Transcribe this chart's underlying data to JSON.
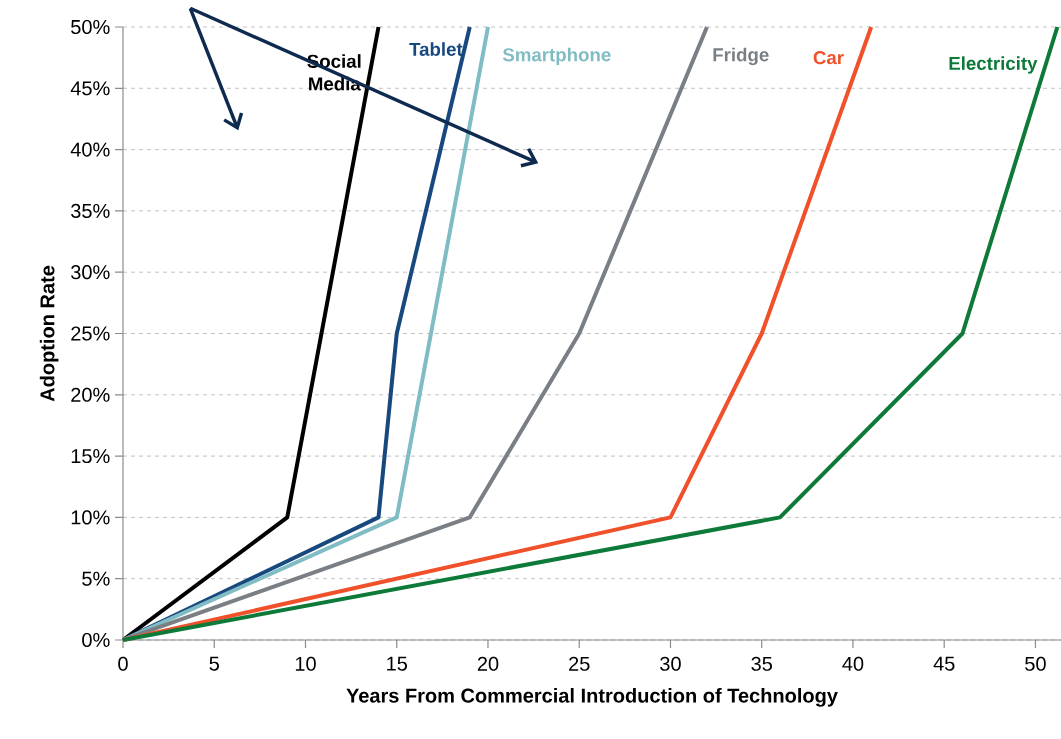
{
  "chart_data": {
    "type": "line",
    "xlabel": "Years From Commercial Introduction of Technology",
    "ylabel": "Adoption Rate",
    "xlim": [
      0,
      51.4
    ],
    "ylim": [
      0,
      50
    ],
    "xticks": [
      0,
      5,
      10,
      15,
      20,
      25,
      30,
      35,
      40,
      45,
      50
    ],
    "yticks": [
      {
        "value": 0,
        "label": "0%"
      },
      {
        "value": 5,
        "label": "5%"
      },
      {
        "value": 10,
        "label": "10%"
      },
      {
        "value": 15,
        "label": "15%"
      },
      {
        "value": 20,
        "label": "20%"
      },
      {
        "value": 25,
        "label": "25%"
      },
      {
        "value": 30,
        "label": "30%"
      },
      {
        "value": 35,
        "label": "35%"
      },
      {
        "value": 40,
        "label": "40%"
      },
      {
        "value": 45,
        "label": "45%"
      },
      {
        "value": 50,
        "label": "50%"
      }
    ],
    "grid": "y",
    "legend": false,
    "series": [
      {
        "name": "Social Media",
        "color": "#000000",
        "x": [
          0,
          9,
          14
        ],
        "values": [
          0,
          10,
          50
        ]
      },
      {
        "name": "Tablet",
        "color": "#17497f",
        "x": [
          0,
          14,
          15,
          19
        ],
        "values": [
          0,
          10,
          25,
          50
        ]
      },
      {
        "name": "Smartphone",
        "color": "#7fbcc4",
        "x": [
          0,
          15,
          20
        ],
        "values": [
          0,
          10,
          50
        ]
      },
      {
        "name": "Fridge",
        "color": "#7a7f85",
        "x": [
          0,
          19,
          25,
          32
        ],
        "values": [
          0,
          10,
          25,
          50
        ]
      },
      {
        "name": "Car",
        "color": "#f0502a",
        "x": [
          0,
          30,
          35,
          41
        ],
        "values": [
          0,
          10,
          25,
          50
        ]
      },
      {
        "name": "Electricity",
        "color": "#0e7a3a",
        "x": [
          0,
          36,
          46,
          51.2
        ],
        "values": [
          0,
          10,
          25,
          50
        ]
      }
    ]
  }
}
